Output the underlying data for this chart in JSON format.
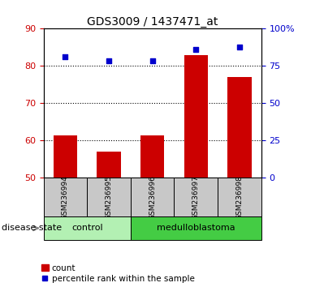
{
  "title": "GDS3009 / 1437471_at",
  "samples": [
    "GSM236994",
    "GSM236995",
    "GSM236996",
    "GSM236997",
    "GSM236998"
  ],
  "bar_values": [
    61.5,
    57.0,
    61.5,
    83.0,
    77.0
  ],
  "scatter_values": [
    82.5,
    81.5,
    81.5,
    84.5,
    85.0
  ],
  "bar_bottom": 50,
  "ylim_left": [
    50,
    90
  ],
  "ylim_right": [
    0,
    100
  ],
  "yticks_left": [
    50,
    60,
    70,
    80,
    90
  ],
  "yticks_right": [
    0,
    25,
    50,
    75,
    100
  ],
  "hlines": [
    60,
    70,
    80
  ],
  "bar_color": "#cc0000",
  "scatter_color": "#0000cc",
  "groups": [
    {
      "label": "control",
      "indices": [
        0,
        1
      ],
      "color": "#b3f0b3"
    },
    {
      "label": "medulloblastoma",
      "indices": [
        2,
        3,
        4
      ],
      "color": "#44cc44"
    }
  ],
  "group_label": "disease state",
  "legend_count_label": "count",
  "legend_pct_label": "percentile rank within the sample",
  "bar_width": 0.55,
  "tick_label_color_left": "#cc0000",
  "tick_label_color_right": "#0000cc",
  "background_sample": "#c8c8c8",
  "figsize": [
    3.83,
    3.54
  ],
  "dpi": 100
}
